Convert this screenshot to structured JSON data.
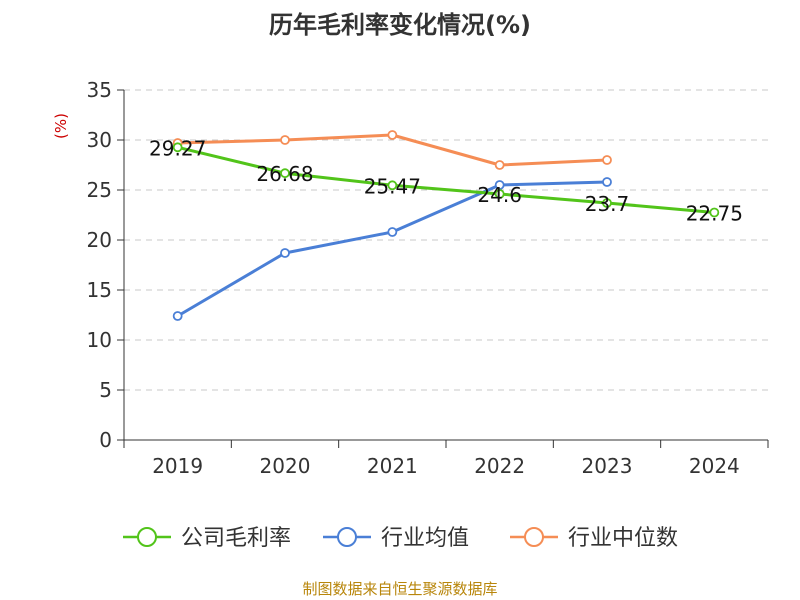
{
  "chart_data": {
    "type": "line",
    "title": "历年毛利率变化情况(%)",
    "ylabel": "(%)",
    "xlabel": "",
    "categories": [
      "2019",
      "2020",
      "2021",
      "2022",
      "2023",
      "2024"
    ],
    "ylim": [
      0,
      35
    ],
    "yticks": [
      "0",
      "5",
      "10",
      "15",
      "20",
      "25",
      "30",
      "35"
    ],
    "grid": true,
    "legend_position": "bottom",
    "series": [
      {
        "name": "公司毛利率",
        "color": "#52c41a",
        "values": [
          29.27,
          26.68,
          25.47,
          24.6,
          23.7,
          22.75
        ],
        "labels": [
          "29.27",
          "26.68",
          "25.47",
          "24.6",
          "23.7",
          "22.75"
        ]
      },
      {
        "name": "行业均值",
        "color": "#4a7fd6",
        "values": [
          12.4,
          18.7,
          20.8,
          25.5,
          25.8,
          null
        ]
      },
      {
        "name": "行业中位数",
        "color": "#f58d55",
        "values": [
          29.7,
          30.0,
          30.5,
          27.5,
          28.0,
          null
        ]
      }
    ],
    "source": "制图数据来自恒生聚源数据库"
  }
}
